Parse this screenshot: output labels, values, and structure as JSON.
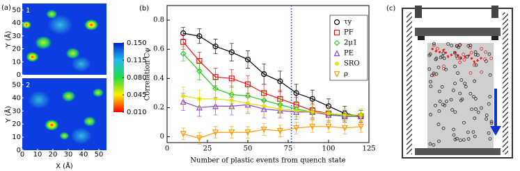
{
  "chart_data": [
    {
      "type": "heatmap",
      "panel_label": "(a)",
      "maps": [
        {
          "label": "1"
        },
        {
          "label": "2"
        }
      ],
      "xlabel": "X (Å)",
      "ylabel": "Y (Å)",
      "xlim": [
        0,
        55
      ],
      "ylim": [
        0,
        55
      ],
      "xticks": [
        0,
        10,
        20,
        30,
        40,
        50
      ],
      "yticks": [
        0,
        10,
        20,
        30,
        40,
        50
      ],
      "clim": [
        0.01,
        0.15
      ],
      "cticks": [
        {
          "value": 0.01,
          "label": "0.010"
        },
        {
          "value": 0.045,
          "label": "0.045"
        },
        {
          "value": 0.08,
          "label": "0.080"
        },
        {
          "value": 0.115,
          "label": "0.115"
        },
        {
          "value": 0.15,
          "label": "0.150"
        }
      ]
    },
    {
      "type": "line",
      "panel_label": "(b)",
      "xlabel": "Number of plastic events from quench state",
      "ylabel": "Correlation Cψ",
      "x": [
        10,
        20,
        30,
        40,
        50,
        60,
        70,
        80,
        90,
        100,
        110,
        120
      ],
      "xlim": [
        0,
        125
      ],
      "ylim": [
        -0.04,
        0.9
      ],
      "xticks": [
        0,
        25,
        50,
        75,
        100,
        125
      ],
      "yticks": [
        0,
        0.2,
        0.4,
        0.6,
        0.8
      ],
      "vline": 77,
      "vline_color": "#2233dd",
      "series": [
        {
          "name": "τy",
          "color": "#000000",
          "marker": "circle",
          "values": [
            0.71,
            0.69,
            0.62,
            0.58,
            0.53,
            0.43,
            0.38,
            0.3,
            0.26,
            0.21,
            0.16,
            0.14
          ],
          "errors": [
            0.04,
            0.05,
            0.05,
            0.06,
            0.06,
            0.07,
            0.07,
            0.06,
            0.06,
            0.05,
            0.05,
            0.04
          ]
        },
        {
          "name": "PF",
          "color": "#ee1111",
          "marker": "square",
          "values": [
            0.65,
            0.52,
            0.41,
            0.4,
            0.36,
            0.3,
            0.26,
            0.22,
            0.18,
            0.16,
            0.14,
            0.14
          ],
          "errors": [
            0.05,
            0.06,
            0.06,
            0.06,
            0.06,
            0.06,
            0.06,
            0.05,
            0.05,
            0.05,
            0.04,
            0.04
          ]
        },
        {
          "name": "2μ1",
          "color": "#22cc22",
          "marker": "diamond",
          "values": [
            0.57,
            0.45,
            0.33,
            0.29,
            0.28,
            0.25,
            0.22,
            0.19,
            0.17,
            0.16,
            0.14,
            0.15
          ],
          "errors": [
            0.05,
            0.06,
            0.06,
            0.06,
            0.06,
            0.06,
            0.05,
            0.05,
            0.05,
            0.05,
            0.04,
            0.04
          ]
        },
        {
          "name": "PE",
          "color": "#8844cc",
          "marker": "triangle",
          "values": [
            0.24,
            0.2,
            0.21,
            0.21,
            0.22,
            0.19,
            0.18,
            0.17,
            0.17,
            0.15,
            0.14,
            0.14
          ],
          "errors": [
            0.06,
            0.06,
            0.06,
            0.06,
            0.06,
            0.06,
            0.05,
            0.05,
            0.05,
            0.05,
            0.04,
            0.04
          ]
        },
        {
          "name": "SRO",
          "color": "#dddd00",
          "marker": "star",
          "values": [
            0.28,
            0.26,
            0.26,
            0.25,
            0.23,
            0.21,
            0.19,
            0.18,
            0.17,
            0.16,
            0.15,
            0.15
          ],
          "errors": [
            0.06,
            0.06,
            0.06,
            0.06,
            0.06,
            0.06,
            0.05,
            0.05,
            0.05,
            0.05,
            0.04,
            0.04
          ]
        },
        {
          "name": "ρ",
          "color": "#ff9900",
          "marker": "tridown",
          "values": [
            0.02,
            -0.01,
            0.03,
            0.03,
            0.03,
            0.05,
            0.04,
            0.06,
            0.07,
            0.07,
            0.06,
            0.07
          ],
          "errors": [
            0.04,
            0.04,
            0.04,
            0.04,
            0.04,
            0.04,
            0.04,
            0.04,
            0.04,
            0.04,
            0.04,
            0.04
          ]
        }
      ]
    }
  ],
  "panel_c": {
    "label": "(c)"
  }
}
